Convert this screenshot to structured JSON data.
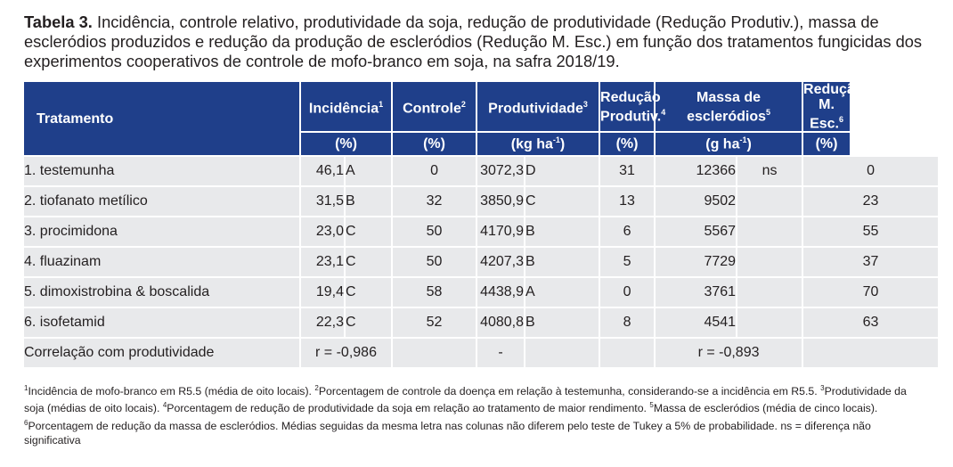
{
  "caption": {
    "label": "Tabela 3.",
    "text": "Incidência, controle relativo, produtividade da soja, redução de produtividade (Redução Produtiv.), massa de escleródios produzidos e redução da produção de escleródios (Redução M. Esc.) em função dos tratamentos fungicidas dos experimentos cooperativos de controle de mofo-branco em soja, na safra 2018/19."
  },
  "header": {
    "tratamento": "Tratamento",
    "incidencia": "Incidência",
    "incidencia_sup": "1",
    "controle": "Controle",
    "controle_sup": "2",
    "produtividade": "Produtividade",
    "produtividade_sup": "3",
    "reducao_prod_l1": "Redução",
    "reducao_prod_l2": "Produtiv.",
    "reducao_prod_sup": "4",
    "massa_l1": "Massa de",
    "massa_l2": "escleródios",
    "massa_sup": "5",
    "reducao_esc_l1": "Redução",
    "reducao_esc_l2": "M. Esc.",
    "reducao_esc_sup": "6"
  },
  "units": {
    "incidencia": "(%)",
    "controle": "(%)",
    "produtividade_pre": "(kg ha",
    "produtividade_sup": "-1",
    "produtividade_post": ")",
    "reducao_prod": "(%)",
    "massa_pre": "(g ha",
    "massa_sup": "-1",
    "massa_post": ")",
    "reducao_esc": "(%)"
  },
  "rows": [
    {
      "name": "1. testemunha",
      "inc": "46,1",
      "inc_l": "A",
      "ctrl": "0",
      "prod": "3072,3",
      "prod_l": "D",
      "red": "31",
      "massa": "12366",
      "massa_l": "ns",
      "redesc": "0"
    },
    {
      "name": "2. tiofanato metílico",
      "inc": "31,5",
      "inc_l": "B",
      "ctrl": "32",
      "prod": "3850,9",
      "prod_l": "C",
      "red": "13",
      "massa": "9502",
      "massa_l": "",
      "redesc": "23"
    },
    {
      "name": "3. procimidona",
      "inc": "23,0",
      "inc_l": "C",
      "ctrl": "50",
      "prod": "4170,9",
      "prod_l": "B",
      "red": "6",
      "massa": "5567",
      "massa_l": "",
      "redesc": "55"
    },
    {
      "name": "4. fluazinam",
      "inc": "23,1",
      "inc_l": "C",
      "ctrl": "50",
      "prod": "4207,3",
      "prod_l": "B",
      "red": "5",
      "massa": "7729",
      "massa_l": "",
      "redesc": "37"
    },
    {
      "name": "5. dimoxistrobina & boscalida",
      "inc": "19,4",
      "inc_l": "C",
      "ctrl": "58",
      "prod": "4438,9",
      "prod_l": "A",
      "red": "0",
      "massa": "3761",
      "massa_l": "",
      "redesc": "70"
    },
    {
      "name": "6. isofetamid",
      "inc": "22,3",
      "inc_l": "C",
      "ctrl": "52",
      "prod": "4080,8",
      "prod_l": "B",
      "red": "8",
      "massa": "4541",
      "massa_l": "",
      "redesc": "63"
    }
  ],
  "correlation": {
    "label": "Correlação com produtividade",
    "incidencia": "r = -0,986",
    "produtividade": "-",
    "massa": "r = -0,893"
  },
  "notes": [
    {
      "sup": "1",
      "text": "Incidência de mofo-branco em R5.5 (média de oito locais). "
    },
    {
      "sup": "2",
      "text": "Porcentagem de controle da doença em relação à testemunha, considerando-se a incidência em R5.5. "
    },
    {
      "sup": "3",
      "text": "Produtividade da soja (médias de oito locais). "
    },
    {
      "sup": "4",
      "text": "Porcentagem de redução de produtividade da soja em relação ao tratamento de maior rendimento. "
    },
    {
      "sup": "5",
      "text": "Massa de escleródios (média de cinco locais). "
    },
    {
      "sup": "6",
      "text": "Porcentagem de redução da massa de escleródios. Médias seguidas da mesma letra nas colunas não diferem pelo teste de Tukey a 5% de probabilidade. ns = diferença não significativa"
    }
  ]
}
